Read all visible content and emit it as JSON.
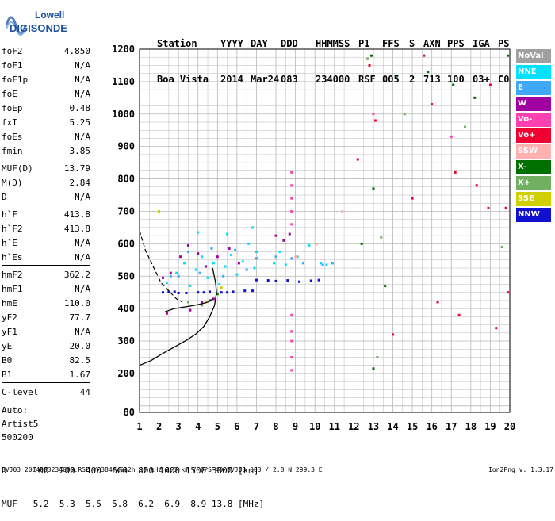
{
  "logo": {
    "line1": "Lowell",
    "line2": "DIGISONDE"
  },
  "header": {
    "labels": [
      "Station",
      "YYYY",
      "DAY",
      "DDD",
      "HHMMSS",
      "P1",
      "FFS",
      "S",
      "AXN",
      "PPS",
      "IGA",
      "PS"
    ],
    "values": [
      "Boa Vista",
      "2014",
      "Mar24",
      "083",
      "234000",
      "RSF",
      "005",
      "2",
      "713",
      "100",
      "03+",
      "C0"
    ]
  },
  "params": {
    "group1": [
      {
        "name": "foF2",
        "value": "4.850"
      },
      {
        "name": "foF1",
        "value": "N/A"
      },
      {
        "name": "foF1p",
        "value": "N/A"
      },
      {
        "name": "foE",
        "value": "N/A"
      },
      {
        "name": "foEp",
        "value": "0.48"
      },
      {
        "name": "fxI",
        "value": "5.25"
      },
      {
        "name": "foEs",
        "value": "N/A"
      },
      {
        "name": "fmin",
        "value": "3.85"
      }
    ],
    "group2": [
      {
        "name": "MUF(D)",
        "value": "13.79"
      },
      {
        "name": "M(D)",
        "value": "2.84"
      },
      {
        "name": "D",
        "value": "N/A"
      }
    ],
    "group3": [
      {
        "name": "h`F",
        "value": "413.8"
      },
      {
        "name": "h`F2",
        "value": "413.8"
      },
      {
        "name": "h`E",
        "value": "N/A"
      },
      {
        "name": "h`Es",
        "value": "N/A"
      }
    ],
    "group4": [
      {
        "name": "hmF2",
        "value": "362.2"
      },
      {
        "name": "hmF1",
        "value": "N/A"
      },
      {
        "name": "hmE",
        "value": "110.0"
      },
      {
        "name": "yF2",
        "value": "77.7"
      },
      {
        "name": "yF1",
        "value": "N/A"
      },
      {
        "name": "yE",
        "value": "20.0"
      },
      {
        "name": "B0",
        "value": "82.5"
      },
      {
        "name": "B1",
        "value": "1.67"
      }
    ],
    "group5": [
      {
        "name": "C-level",
        "value": "44"
      }
    ],
    "auto": [
      "Auto:",
      "Artist5",
      "500200"
    ]
  },
  "legend": [
    {
      "label": "NoVal",
      "color": "#a0a0a0"
    },
    {
      "label": "NNE",
      "color": "#00e0ff"
    },
    {
      "label": "E",
      "color": "#40a8f8"
    },
    {
      "label": "W",
      "color": "#a000a0"
    },
    {
      "label": "Vo-",
      "color": "#ff40b0"
    },
    {
      "label": "Vo+",
      "color": "#f00030"
    },
    {
      "label": "SSW",
      "color": "#ffb0b0"
    },
    {
      "label": "X-",
      "color": "#007000"
    },
    {
      "label": "X+",
      "color": "#70b060"
    },
    {
      "label": "SSE",
      "color": "#d0d000"
    },
    {
      "label": "NNW",
      "color": "#1010d0"
    }
  ],
  "muf_table": {
    "line1": "D     100  200  400  600  800 1000 1500 3000 [km]",
    "line2": "MUF   5.2  5.3  5.5  5.8  6.2  6.9  8.9 13.8 [MHz]"
  },
  "footer": {
    "left": "BVJ03_2014083234000.RSF / 384fx512h 50 kHz 2.5 km / DPS-4D BVJ03 003 / 2.8 N 299.3 E",
    "right": "Ion2Png v. 1.3.17"
  },
  "chart_data": {
    "type": "scatter",
    "xlim": [
      1,
      20
    ],
    "ylim": [
      80,
      1200
    ],
    "x_ticks": [
      1,
      2,
      3,
      4,
      5,
      6,
      7,
      8,
      9,
      10,
      11,
      12,
      13,
      14,
      15,
      16,
      17,
      18,
      19,
      20
    ],
    "y_ticks": [
      80,
      200,
      300,
      400,
      500,
      600,
      700,
      800,
      900,
      1000,
      1100,
      1200
    ],
    "grid": true,
    "clusters": [
      {
        "name": "NNW",
        "color": "#1010d0",
        "points": [
          [
            2.2,
            450
          ],
          [
            2.8,
            452
          ],
          [
            3.4,
            448
          ],
          [
            4.0,
            450
          ],
          [
            4.6,
            452
          ],
          [
            5.2,
            450
          ],
          [
            5.8,
            452
          ],
          [
            6.4,
            455
          ],
          [
            7.0,
            488
          ],
          [
            8.0,
            485
          ],
          [
            8.6,
            487
          ],
          [
            9.2,
            483
          ],
          [
            9.8,
            486
          ],
          [
            10.2,
            488
          ],
          [
            7.6,
            487
          ],
          [
            6.8,
            455
          ],
          [
            3.0,
            448
          ],
          [
            4.3,
            450
          ],
          [
            5.5,
            450
          ],
          [
            2.5,
            452
          ]
        ]
      },
      {
        "name": "NNE",
        "color": "#00e0ff",
        "points": [
          [
            2.4,
            480
          ],
          [
            2.9,
            510
          ],
          [
            3.3,
            540
          ],
          [
            3.6,
            470
          ],
          [
            3.9,
            520
          ],
          [
            4.2,
            560
          ],
          [
            4.5,
            495
          ],
          [
            4.8,
            540
          ],
          [
            5.1,
            475
          ],
          [
            5.4,
            530
          ],
          [
            5.7,
            565
          ],
          [
            6.0,
            505
          ],
          [
            6.3,
            545
          ],
          [
            6.6,
            600
          ],
          [
            6.9,
            525
          ],
          [
            7.0,
            575
          ],
          [
            7.9,
            540
          ],
          [
            8.2,
            575
          ],
          [
            8.5,
            535
          ],
          [
            9.1,
            560
          ],
          [
            9.7,
            595
          ],
          [
            10.3,
            540
          ],
          [
            10.6,
            535
          ],
          [
            4.0,
            635
          ],
          [
            5.5,
            630
          ],
          [
            6.8,
            650
          ]
        ]
      },
      {
        "name": "E",
        "color": "#40a8f8",
        "points": [
          [
            3.0,
            500
          ],
          [
            3.5,
            575
          ],
          [
            4.1,
            510
          ],
          [
            4.7,
            585
          ],
          [
            5.3,
            500
          ],
          [
            5.9,
            580
          ],
          [
            6.5,
            520
          ],
          [
            7.0,
            555
          ],
          [
            8.0,
            560
          ],
          [
            8.8,
            555
          ],
          [
            9.4,
            540
          ],
          [
            10.4,
            535
          ],
          [
            10.9,
            540
          ],
          [
            2.6,
            500
          ]
        ]
      },
      {
        "name": "W",
        "color": "#a000a0",
        "points": [
          [
            2.2,
            495
          ],
          [
            2.6,
            510
          ],
          [
            3.1,
            560
          ],
          [
            3.5,
            595
          ],
          [
            4.0,
            570
          ],
          [
            4.4,
            530
          ],
          [
            5.0,
            560
          ],
          [
            5.6,
            585
          ],
          [
            6.1,
            540
          ],
          [
            8.0,
            625
          ],
          [
            8.4,
            610
          ],
          [
            8.7,
            630
          ],
          [
            2.4,
            385
          ],
          [
            3.6,
            395
          ],
          [
            4.2,
            420
          ],
          [
            4.8,
            430
          ]
        ]
      },
      {
        "name": "Vo-",
        "color": "#ff40b0",
        "points": [
          [
            8.8,
            820
          ],
          [
            8.8,
            780
          ],
          [
            8.8,
            740
          ],
          [
            8.8,
            700
          ],
          [
            8.8,
            660
          ],
          [
            8.8,
            380
          ],
          [
            8.8,
            330
          ],
          [
            8.8,
            300
          ],
          [
            8.8,
            250
          ],
          [
            8.8,
            210
          ],
          [
            13.0,
            1000
          ],
          [
            17.0,
            930
          ]
        ]
      },
      {
        "name": "Vo+",
        "color": "#f00030",
        "points": [
          [
            12.8,
            1150
          ],
          [
            13.1,
            980
          ],
          [
            15.6,
            1180
          ],
          [
            16.0,
            1030
          ],
          [
            17.2,
            820
          ],
          [
            18.3,
            780
          ],
          [
            18.9,
            710
          ],
          [
            19.3,
            340
          ],
          [
            19.8,
            710
          ],
          [
            19.9,
            450
          ],
          [
            14.0,
            320
          ],
          [
            16.3,
            420
          ],
          [
            17.4,
            380
          ],
          [
            19.0,
            1090
          ],
          [
            12.2,
            860
          ],
          [
            15.0,
            740
          ]
        ]
      },
      {
        "name": "SSW",
        "color": "#ffb0b0",
        "points": [
          [
            9.0,
            560
          ],
          [
            10.1,
            600
          ],
          [
            11.4,
            700
          ]
        ]
      },
      {
        "name": "X-",
        "color": "#007000",
        "points": [
          [
            4.6,
            425
          ],
          [
            5.0,
            445
          ],
          [
            12.9,
            1180
          ],
          [
            13.6,
            470
          ],
          [
            13.0,
            215
          ],
          [
            14.2,
            1110
          ],
          [
            15.8,
            1130
          ],
          [
            17.1,
            1090
          ],
          [
            18.2,
            1050
          ],
          [
            19.9,
            1180
          ],
          [
            12.4,
            600
          ],
          [
            13.0,
            770
          ]
        ]
      },
      {
        "name": "X+",
        "color": "#70b060",
        "points": [
          [
            3.5,
            420
          ],
          [
            4.2,
            410
          ],
          [
            12.7,
            1170
          ],
          [
            13.4,
            620
          ],
          [
            14.6,
            1000
          ],
          [
            17.7,
            960
          ],
          [
            19.6,
            590
          ],
          [
            13.2,
            250
          ]
        ]
      },
      {
        "name": "SSE",
        "color": "#d0d000",
        "points": [
          [
            4.4,
            420
          ],
          [
            5.2,
            465
          ],
          [
            2.0,
            700
          ]
        ]
      }
    ],
    "trace": {
      "name": "profile",
      "x": [
        1.0,
        1.6,
        2.2,
        2.8,
        3.4,
        3.9,
        4.3,
        4.6,
        4.85,
        4.95,
        4.9,
        4.8,
        4.75
      ],
      "y": [
        225,
        240,
        262,
        282,
        302,
        322,
        345,
        375,
        410,
        450,
        480,
        510,
        525
      ]
    },
    "trace_dashed": {
      "name": "profile-topside",
      "x": [
        1.0,
        1.3,
        1.7,
        2.1,
        2.5,
        2.9,
        3.2
      ],
      "y": [
        640,
        580,
        530,
        480,
        455,
        430,
        420
      ]
    },
    "echo_trace": {
      "name": "h'F trace",
      "x": [
        2.3,
        2.8,
        3.3,
        3.8,
        4.2,
        4.5,
        4.75
      ],
      "y": [
        390,
        400,
        405,
        410,
        415,
        420,
        430
      ]
    }
  }
}
